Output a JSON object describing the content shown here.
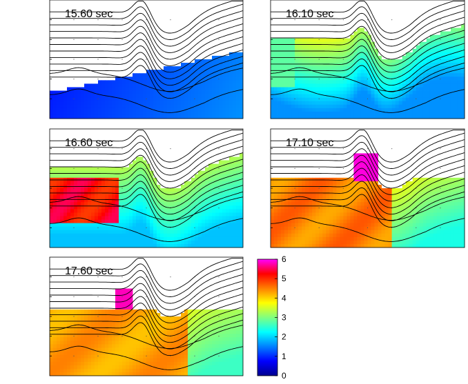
{
  "chart_data": [
    {
      "type": "heatmap",
      "panel": "a",
      "label": "15.60 sec",
      "field_description": "flow field mostly empty (white); low values (~0.5-1.5, dark/medium blue) along bottom and right; no annotations of units",
      "value_range": [
        0,
        6
      ],
      "typical_values": {
        "upper_left": null,
        "bottom_band": 1.0,
        "right_edge": 1.5
      }
    },
    {
      "type": "heatmap",
      "panel": "b",
      "label": "16.10 sec",
      "value_range": [
        0,
        6
      ],
      "typical_values": {
        "band_under_contours": 3.5,
        "lower_region": 2.0,
        "left_edge": 2.5
      }
    },
    {
      "type": "heatmap",
      "panel": "c",
      "label": "16.60 sec",
      "value_range": [
        0,
        6
      ],
      "typical_values": {
        "left_block": 5.3,
        "middle_band": 3.0,
        "lower_region": 2.0,
        "right_edge": 3.5
      }
    },
    {
      "type": "heatmap",
      "panel": "d",
      "label": "17.10 sec",
      "value_range": [
        0,
        6
      ],
      "typical_values": {
        "left_region": 4.6,
        "crest_peak": 6.0,
        "right_band": 3.0,
        "lower_right": 2.5
      }
    },
    {
      "type": "heatmap",
      "panel": "e",
      "label": "17.60 sec",
      "value_range": [
        0,
        6
      ],
      "typical_values": {
        "main_region": 4.3,
        "crest_peak": 5.8,
        "right_band": 3.3,
        "far_right": 2.5
      }
    }
  ],
  "colorbar": {
    "min": 0,
    "max": 6,
    "ticks": [
      "0",
      "1",
      "2",
      "3",
      "4",
      "5",
      "6"
    ],
    "colormap": "jet"
  },
  "colors": {
    "axis": "#000000",
    "contour": "#000000",
    "grid_dot": "#555555"
  }
}
